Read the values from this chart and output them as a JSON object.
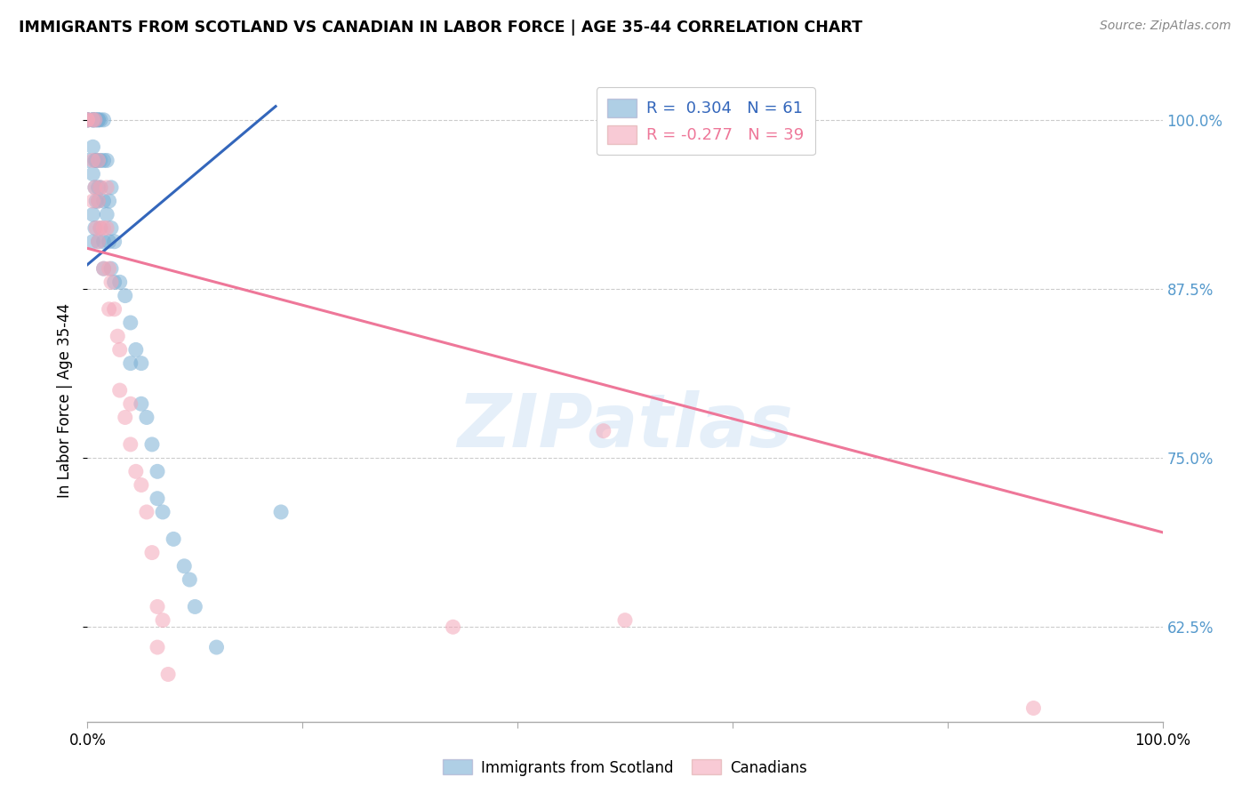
{
  "title": "IMMIGRANTS FROM SCOTLAND VS CANADIAN IN LABOR FORCE | AGE 35-44 CORRELATION CHART",
  "source": "Source: ZipAtlas.com",
  "ylabel": "In Labor Force | Age 35-44",
  "xlim": [
    0.0,
    1.0
  ],
  "ylim": [
    0.555,
    1.03
  ],
  "yticks": [
    0.625,
    0.75,
    0.875,
    1.0
  ],
  "ytick_labels": [
    "62.5%",
    "75.0%",
    "87.5%",
    "100.0%"
  ],
  "xticks": [
    0.0,
    0.2,
    0.4,
    0.6,
    0.8,
    1.0
  ],
  "xtick_labels": [
    "0.0%",
    "",
    "",
    "",
    "",
    "100.0%"
  ],
  "watermark_text": "ZIPatlas",
  "blue_R": "0.304",
  "blue_N": "61",
  "pink_R": "-0.277",
  "pink_N": "39",
  "blue_color": "#7BAFD4",
  "pink_color": "#F4A7B9",
  "blue_line_color": "#3366BB",
  "pink_line_color": "#EE7799",
  "blue_scatter_x": [
    0.0,
    0.0,
    0.0,
    0.0,
    0.0,
    0.005,
    0.005,
    0.005,
    0.005,
    0.005,
    0.005,
    0.005,
    0.007,
    0.007,
    0.007,
    0.007,
    0.008,
    0.008,
    0.008,
    0.01,
    0.01,
    0.01,
    0.01,
    0.01,
    0.01,
    0.012,
    0.012,
    0.012,
    0.012,
    0.015,
    0.015,
    0.015,
    0.015,
    0.015,
    0.018,
    0.018,
    0.02,
    0.02,
    0.022,
    0.022,
    0.022,
    0.025,
    0.025,
    0.03,
    0.035,
    0.04,
    0.04,
    0.045,
    0.05,
    0.05,
    0.055,
    0.06,
    0.065,
    0.065,
    0.07,
    0.08,
    0.09,
    0.095,
    0.1,
    0.12,
    0.18
  ],
  "blue_scatter_y": [
    1.0,
    1.0,
    1.0,
    1.0,
    0.97,
    1.0,
    1.0,
    1.0,
    0.98,
    0.96,
    0.93,
    0.91,
    1.0,
    0.97,
    0.95,
    0.92,
    1.0,
    0.97,
    0.94,
    1.0,
    1.0,
    0.97,
    0.95,
    0.94,
    0.91,
    1.0,
    0.97,
    0.95,
    0.92,
    1.0,
    0.97,
    0.94,
    0.91,
    0.89,
    0.97,
    0.93,
    0.94,
    0.91,
    0.95,
    0.92,
    0.89,
    0.91,
    0.88,
    0.88,
    0.87,
    0.85,
    0.82,
    0.83,
    0.82,
    0.79,
    0.78,
    0.76,
    0.74,
    0.72,
    0.71,
    0.69,
    0.67,
    0.66,
    0.64,
    0.61,
    0.71
  ],
  "pink_scatter_x": [
    0.0,
    0.0,
    0.005,
    0.005,
    0.005,
    0.007,
    0.007,
    0.008,
    0.01,
    0.01,
    0.01,
    0.012,
    0.012,
    0.015,
    0.015,
    0.018,
    0.018,
    0.02,
    0.02,
    0.022,
    0.025,
    0.028,
    0.03,
    0.03,
    0.035,
    0.04,
    0.04,
    0.045,
    0.05,
    0.055,
    0.06,
    0.065,
    0.065,
    0.07,
    0.075,
    0.34,
    0.48,
    0.5,
    0.88
  ],
  "pink_scatter_y": [
    1.0,
    1.0,
    1.0,
    0.97,
    0.94,
    1.0,
    0.95,
    0.92,
    0.97,
    0.94,
    0.91,
    0.95,
    0.92,
    0.92,
    0.89,
    0.95,
    0.92,
    0.89,
    0.86,
    0.88,
    0.86,
    0.84,
    0.83,
    0.8,
    0.78,
    0.79,
    0.76,
    0.74,
    0.73,
    0.71,
    0.68,
    0.64,
    0.61,
    0.63,
    0.59,
    0.625,
    0.77,
    0.63,
    0.565
  ],
  "blue_trend_x0": 0.0,
  "blue_trend_x1": 0.175,
  "blue_trend_y0": 0.893,
  "blue_trend_y1": 1.01,
  "pink_trend_x0": 0.0,
  "pink_trend_x1": 1.0,
  "pink_trend_y0": 0.905,
  "pink_trend_y1": 0.695
}
